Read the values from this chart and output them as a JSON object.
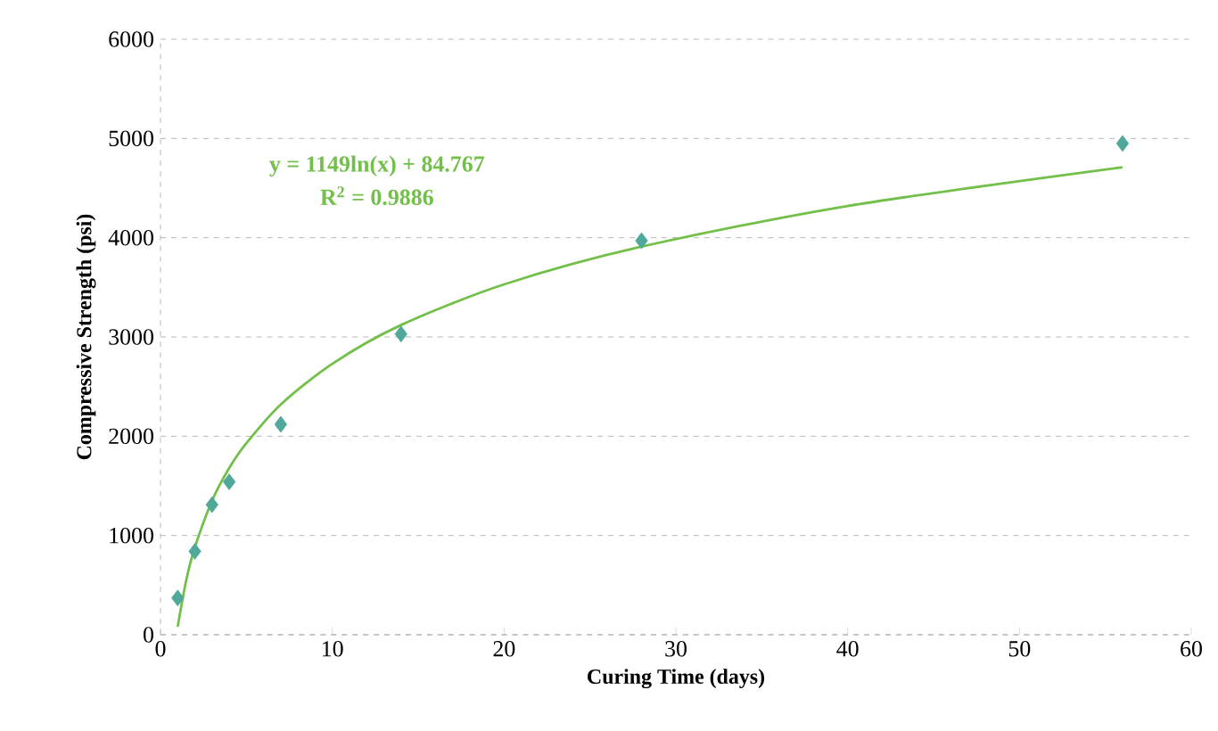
{
  "chart_data": {
    "type": "scatter",
    "xlabel": "Curing Time (days)",
    "ylabel": "Compressive Strength (psi)",
    "xlim": [
      0,
      60
    ],
    "xticks": [
      0,
      10,
      20,
      30,
      40,
      50,
      60
    ],
    "ylim": [
      0,
      6000
    ],
    "yticks": [
      0,
      1000,
      2000,
      3000,
      4000,
      5000,
      6000
    ],
    "grid": "y",
    "marker": "diamond",
    "series": [
      {
        "color": "#4fa89a",
        "x": [
          1,
          2,
          3,
          4,
          7,
          14,
          28,
          56
        ],
        "values": [
          370,
          840,
          1310,
          1540,
          2120,
          3030,
          3970,
          4950
        ]
      },
      {
        "type": "line",
        "color": "#72bf4a",
        "marker": "none",
        "x": [
          1,
          1.5,
          2,
          3,
          4,
          5,
          7,
          10,
          14,
          20,
          28,
          40,
          56
        ],
        "values": [
          80,
          550,
          880,
          1350,
          1680,
          1930,
          2320,
          2730,
          3120,
          3530,
          3910,
          4320,
          4710
        ]
      }
    ],
    "annotations": [
      "y = 1149ln(x) + 84.767",
      "R$^{2}$ = 0.9886"
    ]
  }
}
